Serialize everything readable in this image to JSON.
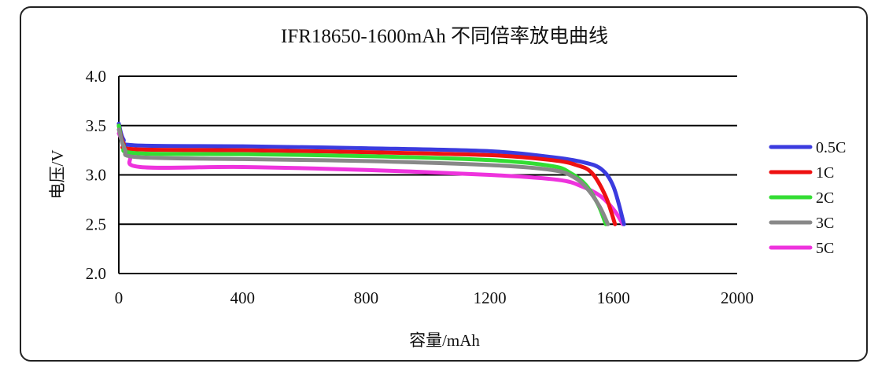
{
  "chart_data": {
    "type": "line",
    "title": "IFR18650-1600mAh 不同倍率放电曲线",
    "xlabel": "容量/mAh",
    "ylabel": "电压/V",
    "xlim": [
      0,
      2000
    ],
    "ylim": [
      2.0,
      4.0
    ],
    "xticks": [
      "0",
      "400",
      "800",
      "1200",
      "1600",
      "2000"
    ],
    "yticks": [
      "2.0",
      "2.5",
      "3.0",
      "3.5",
      "4.0"
    ],
    "grid": "horizontal",
    "legend": "right",
    "series": [
      {
        "name": "0.5C",
        "color": "#3b3bdf",
        "points": [
          [
            0,
            3.52
          ],
          [
            15,
            3.36
          ],
          [
            50,
            3.3
          ],
          [
            400,
            3.29
          ],
          [
            800,
            3.27
          ],
          [
            1200,
            3.24
          ],
          [
            1400,
            3.18
          ],
          [
            1500,
            3.13
          ],
          [
            1560,
            3.06
          ],
          [
            1600,
            2.88
          ],
          [
            1634,
            2.5
          ]
        ]
      },
      {
        "name": "1C",
        "color": "#ee1111",
        "points": [
          [
            0,
            3.5
          ],
          [
            15,
            3.32
          ],
          [
            50,
            3.26
          ],
          [
            400,
            3.25
          ],
          [
            800,
            3.23
          ],
          [
            1200,
            3.2
          ],
          [
            1400,
            3.15
          ],
          [
            1480,
            3.1
          ],
          [
            1530,
            3.02
          ],
          [
            1575,
            2.78
          ],
          [
            1605,
            2.5
          ]
        ]
      },
      {
        "name": "2C",
        "color": "#33dd33",
        "points": [
          [
            0,
            3.5
          ],
          [
            15,
            3.3
          ],
          [
            55,
            3.22
          ],
          [
            400,
            3.21
          ],
          [
            800,
            3.19
          ],
          [
            1200,
            3.15
          ],
          [
            1400,
            3.09
          ],
          [
            1460,
            3.02
          ],
          [
            1510,
            2.9
          ],
          [
            1550,
            2.7
          ],
          [
            1575,
            2.5
          ]
        ]
      },
      {
        "name": "3C",
        "color": "#888888",
        "points": [
          [
            0,
            3.46
          ],
          [
            20,
            3.26
          ],
          [
            60,
            3.18
          ],
          [
            400,
            3.16
          ],
          [
            800,
            3.14
          ],
          [
            1200,
            3.1
          ],
          [
            1400,
            3.05
          ],
          [
            1470,
            2.98
          ],
          [
            1515,
            2.86
          ],
          [
            1555,
            2.68
          ],
          [
            1582,
            2.5
          ]
        ]
      },
      {
        "name": "5C",
        "color": "#ee33dd",
        "points": [
          [
            0,
            3.42
          ],
          [
            35,
            3.2
          ],
          [
            70,
            3.08
          ],
          [
            400,
            3.08
          ],
          [
            800,
            3.05
          ],
          [
            1200,
            3.0
          ],
          [
            1420,
            2.95
          ],
          [
            1500,
            2.88
          ],
          [
            1560,
            2.78
          ],
          [
            1605,
            2.63
          ],
          [
            1630,
            2.5
          ]
        ]
      }
    ]
  }
}
